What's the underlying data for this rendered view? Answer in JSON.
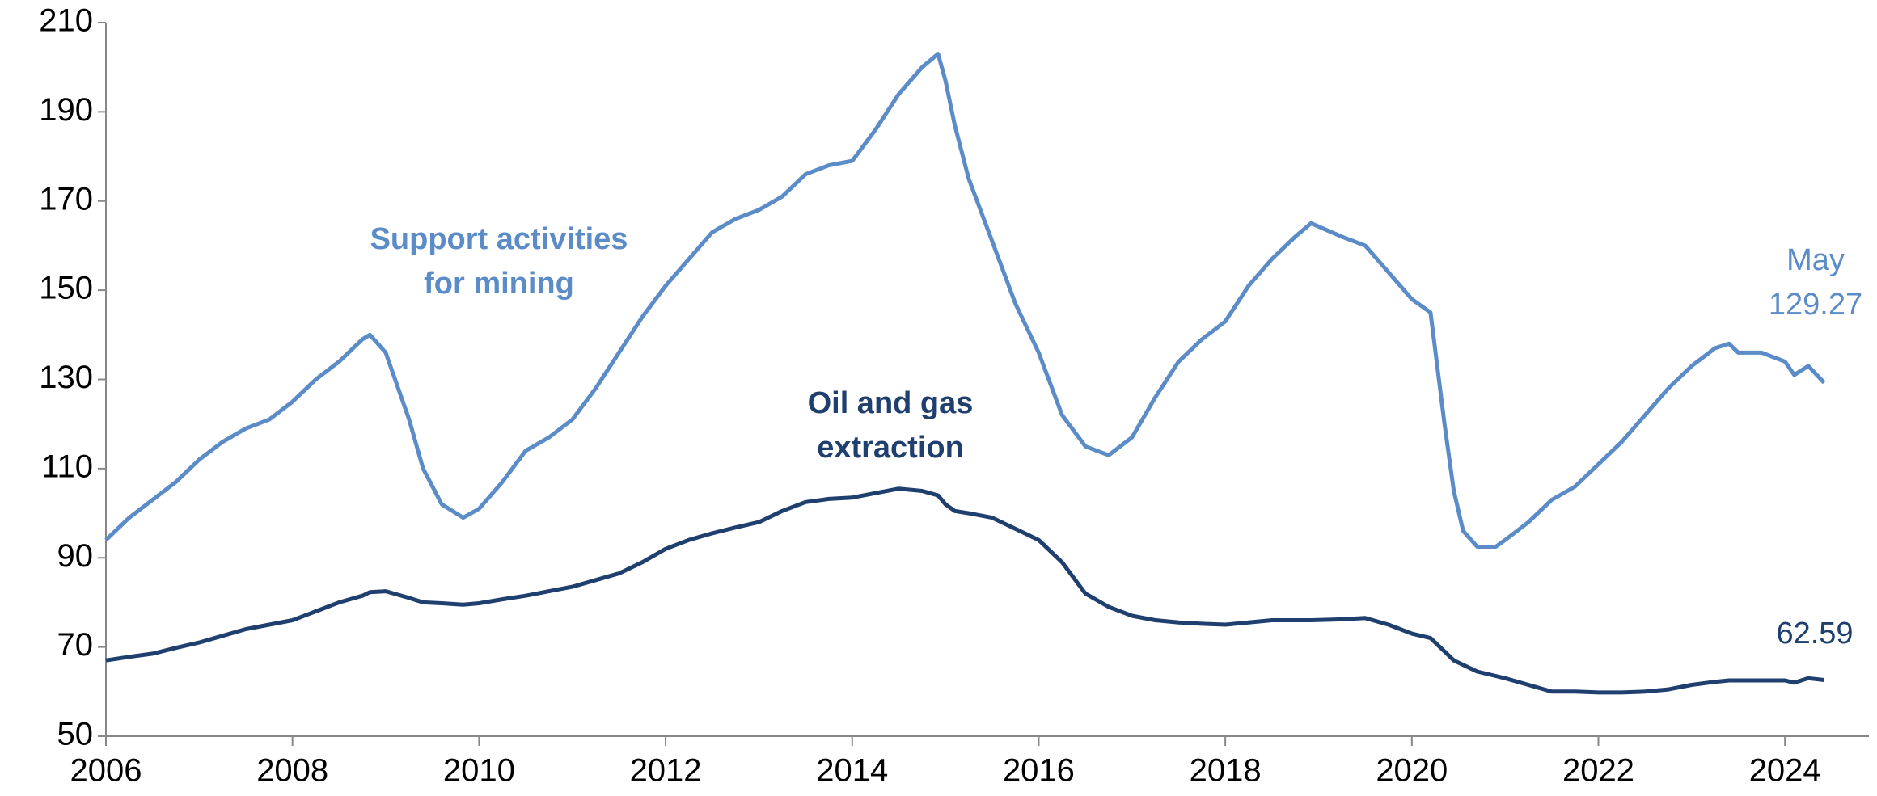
{
  "chart_data": {
    "type": "line",
    "x": [
      2006.0,
      2006.25,
      2006.5,
      2006.75,
      2007.0,
      2007.25,
      2007.5,
      2007.75,
      2008.0,
      2008.25,
      2008.5,
      2008.75,
      2008.83,
      2009.0,
      2009.25,
      2009.4,
      2009.6,
      2009.83,
      2010.0,
      2010.25,
      2010.5,
      2010.75,
      2011.0,
      2011.25,
      2011.5,
      2011.75,
      2012.0,
      2012.25,
      2012.5,
      2012.75,
      2013.0,
      2013.25,
      2013.5,
      2013.75,
      2014.0,
      2014.25,
      2014.5,
      2014.75,
      2014.92,
      2015.0,
      2015.1,
      2015.25,
      2015.5,
      2015.75,
      2016.0,
      2016.25,
      2016.5,
      2016.75,
      2017.0,
      2017.25,
      2017.5,
      2017.75,
      2018.0,
      2018.25,
      2018.5,
      2018.75,
      2018.92,
      2019.25,
      2019.5,
      2019.75,
      2020.0,
      2020.2,
      2020.35,
      2020.45,
      2020.55,
      2020.7,
      2020.9,
      2021.0,
      2021.25,
      2021.5,
      2021.75,
      2022.0,
      2022.25,
      2022.5,
      2022.75,
      2023.0,
      2023.25,
      2023.4,
      2023.5,
      2023.75,
      2024.0,
      2024.1,
      2024.25,
      2024.42
    ],
    "series": [
      {
        "name": "Support activities for mining",
        "color": "#5b8cc8",
        "values": [
          94,
          99,
          103,
          107,
          112,
          116,
          119,
          121,
          125,
          130,
          134,
          139,
          140,
          136,
          121,
          110,
          102,
          99,
          101,
          107,
          114,
          117,
          121,
          128,
          136,
          144,
          151,
          157,
          163,
          166,
          168,
          171,
          176,
          178,
          179,
          186,
          194,
          200,
          203,
          197,
          187,
          175,
          161,
          147,
          136,
          122,
          115,
          113,
          117,
          126,
          134,
          139,
          143,
          151,
          157,
          162,
          165,
          162,
          160,
          154,
          148,
          145,
          120,
          105,
          96,
          92.5,
          92.5,
          94,
          98,
          103,
          106,
          111,
          116,
          122,
          128,
          133,
          137,
          138,
          136,
          136,
          134,
          131,
          133,
          129.27
        ]
      },
      {
        "name": "Oil and gas extraction",
        "color": "#1f3f6e",
        "values": [
          67,
          67.8,
          68.5,
          69.8,
          71,
          72.5,
          74,
          75,
          76,
          78,
          80,
          81.5,
          82.3,
          82.5,
          81,
          80,
          79.8,
          79.5,
          79.8,
          80.7,
          81.5,
          82.5,
          83.5,
          85,
          86.5,
          89,
          92,
          94,
          95.5,
          96.8,
          98,
          100.5,
          102.5,
          103.2,
          103.5,
          104.5,
          105.5,
          105,
          104,
          102,
          100.5,
          100,
          99,
          96.5,
          94,
          89,
          82,
          79,
          77,
          76,
          75.5,
          75.2,
          75,
          75.5,
          76,
          76,
          76,
          76.2,
          76.5,
          75,
          73,
          72,
          69,
          67,
          66,
          64.5,
          63.5,
          63,
          61.5,
          60,
          60,
          59.8,
          59.8,
          60,
          60.5,
          61.5,
          62.2,
          62.5,
          62.5,
          62.5,
          62.5,
          62,
          63,
          62.59
        ]
      }
    ],
    "annotations": [
      {
        "lines": [
          "Support activities",
          "for mining"
        ],
        "series": 0
      },
      {
        "lines": [
          "Oil and gas",
          "extraction"
        ],
        "series": 1
      },
      {
        "lines": [
          "May",
          "129.27"
        ],
        "series": 0
      },
      {
        "lines": [
          "62.59"
        ],
        "series": 1
      }
    ],
    "xlim": [
      2006,
      2024.9
    ],
    "xticks": [
      2006,
      2008,
      2010,
      2012,
      2014,
      2016,
      2018,
      2020,
      2022,
      2024
    ],
    "ylim": [
      50,
      210
    ],
    "yticks": [
      50,
      70,
      90,
      110,
      130,
      150,
      170,
      190,
      210
    ]
  }
}
